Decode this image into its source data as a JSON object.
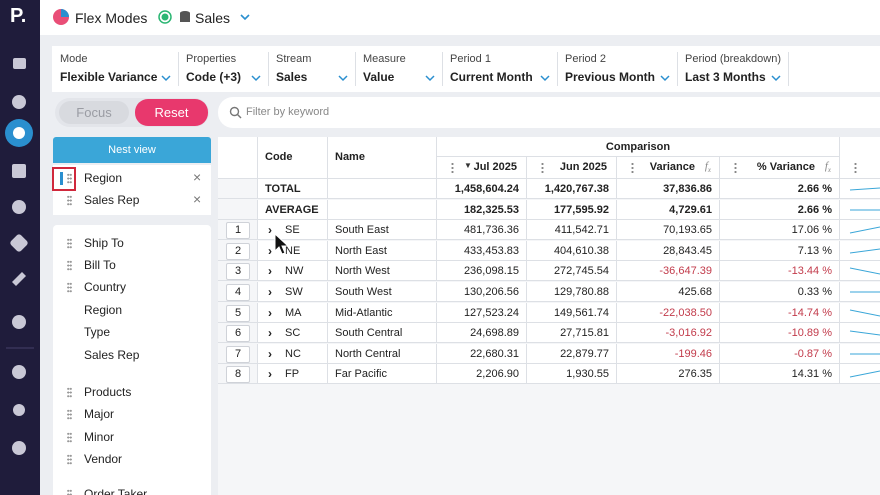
{
  "header": {
    "logo": "P.",
    "app": "Flex Modes",
    "dataset": "Sales"
  },
  "filters": [
    {
      "label": "Mode",
      "value": "Flexible Variance"
    },
    {
      "label": "Properties",
      "value": "Code (+3)"
    },
    {
      "label": "Stream",
      "value": "Sales"
    },
    {
      "label": "Measure",
      "value": "Value"
    },
    {
      "label": "Period 1",
      "value": "Current Month"
    },
    {
      "label": "Period 2",
      "value": "Previous Month"
    },
    {
      "label": "Period (breakdown)",
      "value": "Last 3 Months"
    }
  ],
  "buttons": {
    "focus": "Focus",
    "reset": "Reset"
  },
  "search": {
    "placeholder": "Filter by keyword"
  },
  "nest": {
    "button": "Nest view",
    "items": [
      "Region",
      "Sales Rep"
    ]
  },
  "fields": {
    "group1": [
      "Ship To",
      "Bill To",
      "Country",
      "Region",
      "Type",
      "Sales Rep"
    ],
    "group2": [
      "Products",
      "Major",
      "Minor",
      "Vendor",
      "Order Taker"
    ]
  },
  "table": {
    "group_header": "Comparison",
    "columns": [
      "Code",
      "Name",
      "Jul 2025",
      "Jun 2025",
      "Variance",
      "% Variance"
    ],
    "summary": [
      {
        "label": "TOTAL",
        "values": [
          "1,458,604.24",
          "1,420,767.38",
          "37,836.86",
          "2.66 %"
        ]
      },
      {
        "label": "AVERAGE",
        "values": [
          "182,325.53",
          "177,595.92",
          "4,729.61",
          "2.66 %"
        ]
      }
    ],
    "rows": [
      {
        "index": "1",
        "code": "SE",
        "name": "South East",
        "values": [
          "481,736.36",
          "411,542.71",
          "70,193.65",
          "17.06 %"
        ]
      },
      {
        "index": "2",
        "code": "NE",
        "name": "North East",
        "values": [
          "433,453.83",
          "404,610.38",
          "28,843.45",
          "7.13 %"
        ]
      },
      {
        "index": "3",
        "code": "NW",
        "name": "North West",
        "values": [
          "236,098.15",
          "272,745.54",
          "-36,647.39",
          "-13.44 %"
        ]
      },
      {
        "index": "4",
        "code": "SW",
        "name": "South West",
        "values": [
          "130,206.56",
          "129,780.88",
          "425.68",
          "0.33 %"
        ]
      },
      {
        "index": "5",
        "code": "MA",
        "name": "Mid-Atlantic",
        "values": [
          "127,523.24",
          "149,561.74",
          "-22,038.50",
          "-14.74 %"
        ]
      },
      {
        "index": "6",
        "code": "SC",
        "name": "South Central",
        "values": [
          "24,698.89",
          "27,715.81",
          "-3,016.92",
          "-10.89 %"
        ]
      },
      {
        "index": "7",
        "code": "NC",
        "name": "North Central",
        "values": [
          "22,680.31",
          "22,879.77",
          "-199.46",
          "-0.87 %"
        ]
      },
      {
        "index": "8",
        "code": "FP",
        "name": "Far Pacific",
        "values": [
          "2,206.90",
          "1,930.55",
          "276.35",
          "14.31 %"
        ]
      }
    ]
  }
}
